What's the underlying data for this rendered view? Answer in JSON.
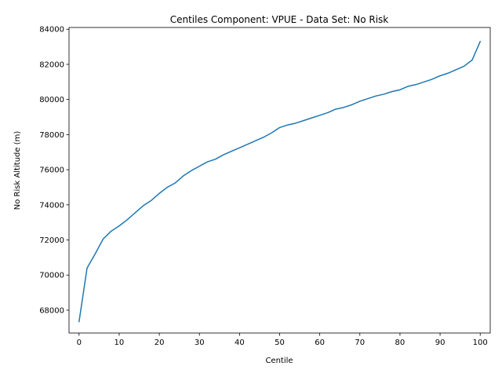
{
  "chart_data": {
    "type": "line",
    "title": "Centiles Component: VPUE - Data Set: No Risk",
    "xlabel": "Centile",
    "ylabel": "No Risk Altitude (m)",
    "xlim": [
      -2.5,
      102.5
    ],
    "ylim": [
      66700,
      84100
    ],
    "xticks": [
      0,
      10,
      20,
      30,
      40,
      50,
      60,
      70,
      80,
      90,
      100
    ],
    "yticks": [
      68000,
      70000,
      72000,
      74000,
      76000,
      78000,
      80000,
      82000,
      84000
    ],
    "grid": false,
    "legend": "none",
    "line_color": "#1f77b4",
    "series": [
      {
        "x": [
          0,
          2,
          4,
          6,
          8,
          10,
          12,
          14,
          16,
          18,
          20,
          22,
          24,
          26,
          28,
          30,
          32,
          34,
          36,
          38,
          40,
          42,
          44,
          46,
          48,
          50,
          52,
          54,
          56,
          58,
          60,
          62,
          64,
          66,
          68,
          70,
          72,
          74,
          76,
          78,
          80,
          82,
          84,
          86,
          88,
          90,
          92,
          94,
          96,
          98,
          100
        ],
        "values": [
          67350,
          70400,
          71200,
          72050,
          72500,
          72800,
          73150,
          73550,
          73950,
          74250,
          74650,
          75000,
          75250,
          75650,
          75950,
          76200,
          76450,
          76600,
          76850,
          77050,
          77250,
          77450,
          77650,
          77850,
          78100,
          78400,
          78550,
          78650,
          78800,
          78950,
          79100,
          79250,
          79450,
          79550,
          79700,
          79900,
          80050,
          80200,
          80300,
          80450,
          80550,
          80750,
          80850,
          81000,
          81150,
          81350,
          81500,
          81700,
          81900,
          82250,
          83300
        ]
      }
    ]
  }
}
